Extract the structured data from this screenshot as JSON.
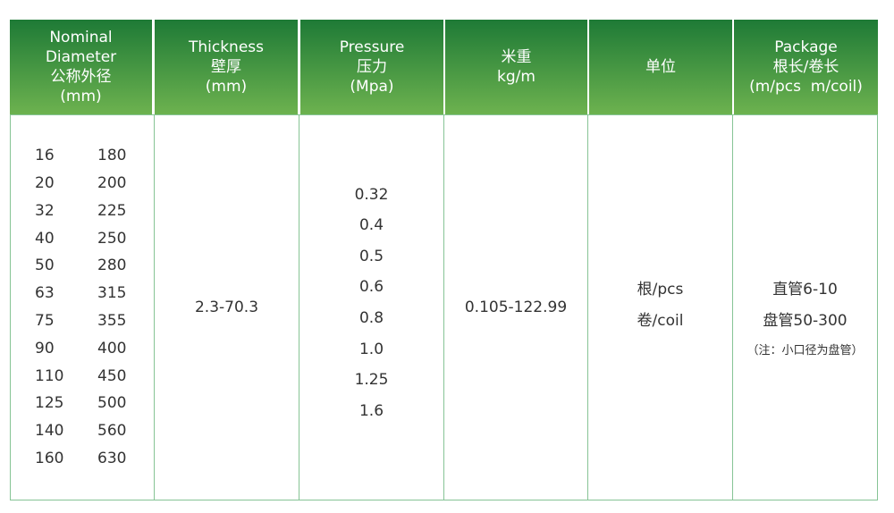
{
  "headers": [
    [
      "Nominal",
      "Diameter",
      "公称外径",
      "(mm)"
    ],
    [
      "Thickness",
      "壁厚",
      "(mm)"
    ],
    [
      "Pressure",
      "压力",
      "(Mpa)"
    ],
    [
      "米重",
      "kg/m"
    ],
    [
      "单位"
    ],
    [
      "Package",
      "根长/卷长",
      "(m/pcs  m/coil)"
    ]
  ],
  "diameters_left": [
    "16",
    "20",
    "32",
    "40",
    "50",
    "63",
    "75",
    "90",
    "110",
    "125",
    "140",
    "160"
  ],
  "diameters_right": [
    "180",
    "200",
    "225",
    "250",
    "280",
    "315",
    "355",
    "400",
    "450",
    "500",
    "560",
    "630"
  ],
  "thickness": "2.3-70.3",
  "pressures": [
    "0.32",
    "0.4",
    "0.5",
    "0.6",
    "0.8",
    "1.0",
    "1.25",
    "1.6"
  ],
  "weight": "0.105-122.99",
  "units": [
    "根/pcs",
    "卷/coil"
  ],
  "package": {
    "straight": "直管6-10",
    "coil": "盘管50-300",
    "note": "（注：小口径为盘管）"
  },
  "colors": {
    "header_top": "#1e7a36",
    "header_bottom": "#6db24f",
    "border": "#86c495"
  }
}
